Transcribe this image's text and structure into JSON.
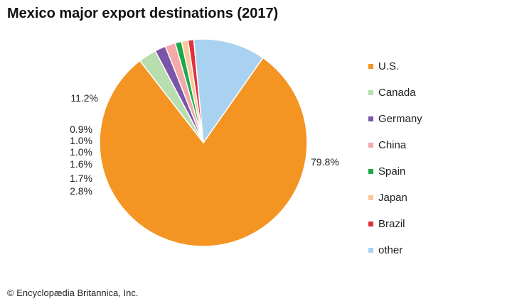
{
  "chart_data": {
    "type": "pie",
    "title": "Mexico major export destinations (2017)",
    "slices": [
      {
        "name": "U.S.",
        "value": 79.8,
        "label": "79.8%",
        "color": "#f39423"
      },
      {
        "name": "Canada",
        "value": 2.8,
        "label": "2.8%",
        "color": "#b8deb0"
      },
      {
        "name": "Germany",
        "value": 1.7,
        "label": "1.7%",
        "color": "#7b56a8"
      },
      {
        "name": "China",
        "value": 1.6,
        "label": "1.6%",
        "color": "#f4a8a8"
      },
      {
        "name": "Spain",
        "value": 1.0,
        "label": "1.0%",
        "color": "#1fa84a"
      },
      {
        "name": "Japan",
        "value": 1.0,
        "label": "1.0%",
        "color": "#fcc79a"
      },
      {
        "name": "Brazil",
        "value": 0.9,
        "label": "0.9%",
        "color": "#e0313a"
      },
      {
        "name": "other",
        "value": 11.2,
        "label": "11.2%",
        "color": "#a9d2f0"
      }
    ],
    "legend_position": "right"
  },
  "credit": "© Encyclopædia Britannica, Inc."
}
